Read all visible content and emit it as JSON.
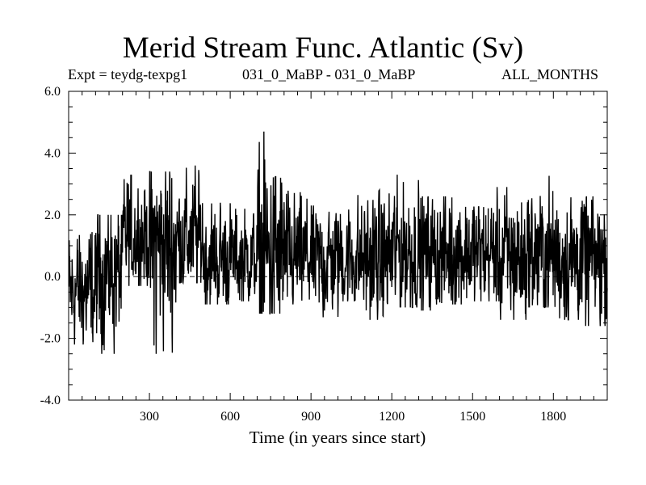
{
  "chart_data": {
    "type": "line",
    "title": "Merid Stream Func. Atlantic (Sv)",
    "subtitle_left": "Expt = teydg-texpg1",
    "subtitle_center": "031_0_MaBP - 031_0_MaBP",
    "subtitle_right": "ALL_MONTHS",
    "xlabel": "Time (in years since start)",
    "ylabel": "",
    "xlim": [
      0,
      2000
    ],
    "ylim": [
      -4.0,
      6.0
    ],
    "x_ticks": [
      300,
      600,
      900,
      1200,
      1500,
      1800
    ],
    "x_tick_labels": [
      "300",
      "600",
      "900",
      "1200",
      "1500",
      "1800"
    ],
    "y_ticks": [
      -4.0,
      -2.0,
      0.0,
      2.0,
      4.0,
      6.0
    ],
    "y_tick_labels": [
      "-4.0",
      "-2.0",
      "0.0",
      "2.0",
      "4.0",
      "6.0"
    ],
    "reference_line": {
      "y": 0.0,
      "style": "dashed"
    },
    "series": [
      {
        "name": "Merid Stream Func. Atlantic",
        "sampling": "annual values, years 1-2000",
        "envelope_by_century": [
          {
            "years": "1-100",
            "mean": -0.5,
            "min": -2.2,
            "max": 1.8
          },
          {
            "years": "100-200",
            "mean": 0.1,
            "min": -2.5,
            "max": 2.0
          },
          {
            "years": "200-300",
            "mean": 1.3,
            "min": -0.3,
            "max": 3.3
          },
          {
            "years": "300-400",
            "mean": 1.0,
            "min": -2.5,
            "max": 3.4
          },
          {
            "years": "400-500",
            "mean": 1.2,
            "min": -0.2,
            "max": 3.6
          },
          {
            "years": "500-600",
            "mean": 0.6,
            "min": -0.9,
            "max": 2.5
          },
          {
            "years": "600-700",
            "mean": 0.6,
            "min": -0.8,
            "max": 2.2
          },
          {
            "years": "700-800",
            "mean": 0.7,
            "min": -1.2,
            "max": 4.7
          },
          {
            "years": "800-900",
            "mean": 0.6,
            "min": -0.9,
            "max": 2.8
          },
          {
            "years": "900-1000",
            "mean": 0.5,
            "min": -1.4,
            "max": 2.3
          },
          {
            "years": "1000-1100",
            "mean": 0.6,
            "min": -0.8,
            "max": 2.7
          },
          {
            "years": "1100-1200",
            "mean": 0.6,
            "min": -1.4,
            "max": 2.8
          },
          {
            "years": "1200-1300",
            "mean": 0.8,
            "min": -1.0,
            "max": 3.3
          },
          {
            "years": "1300-1400",
            "mean": 0.7,
            "min": -1.1,
            "max": 2.6
          },
          {
            "years": "1400-1500",
            "mean": 0.8,
            "min": -0.9,
            "max": 3.0
          },
          {
            "years": "1500-1600",
            "mean": 0.7,
            "min": -0.8,
            "max": 2.9
          },
          {
            "years": "1600-1700",
            "mean": 0.6,
            "min": -1.4,
            "max": 2.9
          },
          {
            "years": "1700-1800",
            "mean": 0.7,
            "min": -1.0,
            "max": 3.3
          },
          {
            "years": "1800-1900",
            "mean": 0.6,
            "min": -1.4,
            "max": 2.8
          },
          {
            "years": "1900-2000",
            "mean": 0.5,
            "min": -1.6,
            "max": 2.6
          }
        ],
        "notable_points": [
          {
            "x": 325,
            "y": -2.5
          },
          {
            "x": 725,
            "y": 4.7
          },
          {
            "x": 470,
            "y": 3.6
          },
          {
            "x": 1930,
            "y": -1.6
          }
        ]
      }
    ]
  },
  "colors": {
    "line": "#000000",
    "axes": "#000000",
    "background": "#ffffff"
  }
}
